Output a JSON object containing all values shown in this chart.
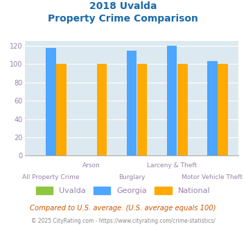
{
  "title_line1": "2018 Uvalda",
  "title_line2": "Property Crime Comparison",
  "cat_labels_top": [
    "",
    "Arson",
    "",
    "Larceny & Theft",
    ""
  ],
  "cat_labels_bot": [
    "All Property Crime",
    "",
    "Burglary",
    "",
    "Motor Vehicle Theft"
  ],
  "uvalda_values": [
    0,
    0,
    0,
    0,
    0
  ],
  "georgia_values": [
    118,
    0,
    115,
    120,
    103
  ],
  "national_values": [
    100,
    100,
    100,
    100,
    100
  ],
  "uvalda_color": "#8dc63f",
  "georgia_color": "#4da6ff",
  "national_color": "#ffaa00",
  "ylim": [
    0,
    125
  ],
  "yticks": [
    0,
    20,
    40,
    60,
    80,
    100,
    120
  ],
  "plot_bg": "#dce9f0",
  "title_color": "#1a6aaa",
  "axis_label_color": "#9980aa",
  "legend_labels": [
    "Uvalda",
    "Georgia",
    "National"
  ],
  "footnote1": "Compared to U.S. average. (U.S. average equals 100)",
  "footnote2": "© 2025 CityRating.com - https://www.cityrating.com/crime-statistics/",
  "footnote1_color": "#cc5500",
  "footnote2_color": "#888888",
  "footnote2_link_color": "#4488cc"
}
